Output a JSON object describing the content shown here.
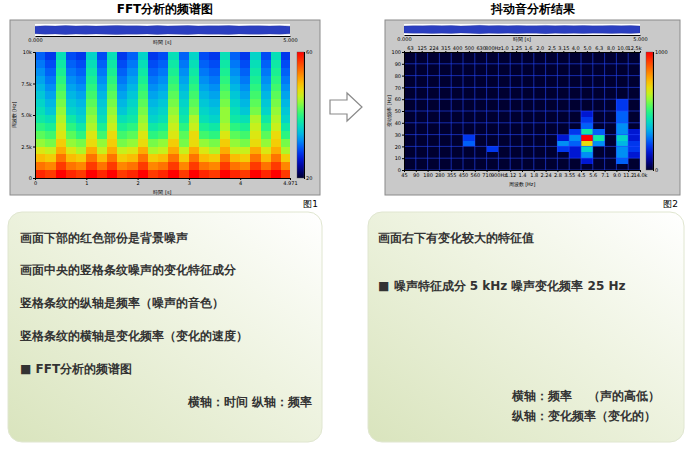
{
  "chart_data": [
    {
      "type": "heatmap",
      "title": "FFT分析的频谱图",
      "figure_label": "图1",
      "x_label": "時間 [s]",
      "y_label": "周波数 [Hz]",
      "xlim": [
        0,
        4.971
      ],
      "xticks": [
        0,
        1,
        2,
        3,
        4,
        4.971
      ],
      "ylim": [
        0,
        10000
      ],
      "yticks": [
        0,
        {
          "value": 2500,
          "label": "2.5k"
        },
        {
          "value": 5000,
          "label": "5.0k"
        },
        {
          "value": 7500,
          "label": "7.5k"
        },
        {
          "value": 10000,
          "label": "10k"
        }
      ],
      "x_edges": [
        0,
        0.2,
        0.4,
        0.6,
        0.8,
        1.0,
        1.2,
        1.4,
        1.6,
        1.8,
        2.0,
        2.2,
        2.4,
        2.6,
        2.8,
        3.0,
        3.2,
        3.4,
        3.6,
        3.8,
        4.0,
        4.2,
        4.4,
        4.6,
        4.8,
        5.0
      ],
      "y_edges": [
        0,
        625,
        1250,
        1875,
        2500,
        3125,
        3750,
        4375,
        5000,
        5625,
        6250,
        6875,
        7500,
        8125,
        8750,
        9375,
        10000
      ],
      "z": [
        [
          58,
          57,
          60,
          58,
          57,
          60,
          58,
          60,
          57,
          58,
          60,
          57,
          58,
          60,
          57,
          60,
          58,
          57,
          60,
          58,
          57,
          60,
          58,
          60,
          57
        ],
        [
          54,
          53,
          57,
          54,
          53,
          57,
          54,
          57,
          53,
          54,
          57,
          53,
          54,
          57,
          53,
          57,
          54,
          53,
          57,
          54,
          53,
          57,
          54,
          57,
          53
        ],
        [
          50,
          49,
          54,
          50,
          49,
          54,
          50,
          54,
          49,
          50,
          54,
          49,
          50,
          54,
          49,
          54,
          50,
          49,
          54,
          50,
          49,
          54,
          50,
          54,
          49
        ],
        [
          47,
          46,
          51,
          47,
          45,
          51,
          46,
          51,
          46,
          47,
          51,
          45,
          46,
          51,
          46,
          51,
          47,
          45,
          51,
          46,
          46,
          51,
          47,
          51,
          45
        ],
        [
          44,
          43,
          49,
          44,
          43,
          48,
          44,
          49,
          43,
          44,
          48,
          43,
          44,
          49,
          43,
          48,
          44,
          43,
          49,
          44,
          43,
          48,
          44,
          49,
          43
        ],
        [
          42,
          41,
          47,
          42,
          40,
          47,
          41,
          48,
          41,
          42,
          47,
          40,
          41,
          47,
          42,
          48,
          41,
          40,
          47,
          42,
          41,
          47,
          42,
          48,
          40
        ],
        [
          40,
          39,
          46,
          40,
          38,
          45,
          39,
          46,
          39,
          40,
          45,
          38,
          39,
          46,
          40,
          46,
          39,
          38,
          45,
          40,
          39,
          46,
          40,
          46,
          38
        ],
        [
          38,
          37,
          45,
          38,
          36,
          44,
          37,
          45,
          37,
          38,
          44,
          36,
          37,
          45,
          38,
          45,
          37,
          36,
          44,
          38,
          37,
          45,
          38,
          45,
          36
        ],
        [
          37,
          35,
          44,
          36,
          35,
          43,
          36,
          44,
          35,
          37,
          43,
          35,
          36,
          44,
          37,
          43,
          36,
          35,
          44,
          37,
          35,
          43,
          36,
          44,
          35
        ],
        [
          36,
          34,
          43,
          35,
          34,
          42,
          35,
          43,
          34,
          36,
          42,
          34,
          35,
          43,
          36,
          42,
          35,
          34,
          43,
          36,
          34,
          42,
          35,
          43,
          34
        ],
        [
          35,
          33,
          42,
          34,
          33,
          41,
          34,
          42,
          33,
          35,
          41,
          33,
          34,
          42,
          35,
          41,
          34,
          33,
          42,
          35,
          33,
          41,
          34,
          42,
          33
        ],
        [
          34,
          32,
          41,
          33,
          32,
          40,
          33,
          41,
          32,
          34,
          40,
          32,
          33,
          41,
          34,
          40,
          33,
          32,
          41,
          34,
          32,
          40,
          33,
          41,
          32
        ],
        [
          33,
          31,
          40,
          32,
          31,
          39,
          32,
          40,
          31,
          33,
          39,
          31,
          32,
          40,
          33,
          39,
          32,
          31,
          40,
          33,
          31,
          39,
          32,
          40,
          31
        ],
        [
          32,
          30,
          39,
          31,
          30,
          38,
          31,
          39,
          30,
          32,
          38,
          30,
          31,
          39,
          32,
          38,
          31,
          30,
          39,
          32,
          30,
          38,
          31,
          39,
          30
        ],
        [
          31,
          29,
          38,
          30,
          29,
          37,
          30,
          38,
          29,
          31,
          37,
          29,
          30,
          38,
          31,
          37,
          30,
          29,
          38,
          31,
          29,
          37,
          30,
          38,
          29
        ],
        [
          30,
          28,
          37,
          29,
          28,
          36,
          29,
          37,
          28,
          30,
          36,
          28,
          29,
          37,
          30,
          36,
          29,
          28,
          37,
          30,
          28,
          36,
          29,
          37,
          28
        ]
      ],
      "colorbar": {
        "range": [
          20,
          60
        ],
        "ticks": [
          20,
          60
        ]
      },
      "waveform": {
        "x_label": "時間 [s]",
        "xlim": [
          0,
          5
        ],
        "xticks": [
          {
            "value": 0,
            "label": "0.000"
          },
          {
            "value": 5,
            "label": "5.000"
          }
        ],
        "ylim": [
          -1,
          1
        ],
        "x": [
          0,
          0.2,
          0.4,
          0.6,
          0.8,
          1.0,
          1.2,
          1.4,
          1.6,
          1.8,
          2.0,
          2.2,
          2.4,
          2.6,
          2.8,
          3.0,
          3.2,
          3.4,
          3.6,
          3.8,
          4.0,
          4.2,
          4.4,
          4.6,
          4.8,
          5.0
        ],
        "values": [
          0.62,
          0.7,
          0.66,
          0.74,
          0.68,
          0.72,
          0.65,
          0.7,
          0.76,
          0.69,
          0.71,
          0.66,
          0.73,
          0.68,
          0.7,
          0.75,
          0.67,
          0.71,
          0.69,
          0.73,
          0.66,
          0.7,
          0.72,
          0.68,
          0.71,
          0.64
        ]
      }
    },
    {
      "type": "heatmap",
      "title": "抖动音分析结果",
      "figure_label": "图2",
      "x_label": "周波数 [Hz]",
      "y_label": "变动频率 [Hz]",
      "categories": [
        "63",
        "125",
        "224",
        "315",
        "400",
        "500",
        "630",
        "800Hz",
        "1.0",
        "1.25",
        "1.6",
        "2.0",
        "2.5",
        "3.15",
        "4.0",
        "5.0",
        "6.3",
        "8.0",
        "10.0",
        "12.5k"
      ],
      "band_edges": [
        "45",
        "90",
        "180",
        "280",
        "355",
        "450",
        "560",
        "710",
        "900Hz",
        "1.12",
        "1.4",
        "1.8",
        "2.24",
        "2.8",
        "3.55",
        "4.5",
        "5.6",
        "7.1",
        "9.0",
        "11.2",
        "14.0k"
      ],
      "ylim": [
        0,
        100
      ],
      "yticks": [
        0,
        10,
        20,
        30,
        40,
        50,
        60,
        70,
        80,
        90,
        100
      ],
      "y_edges": [
        0,
        5,
        10,
        15,
        20,
        25,
        30,
        35,
        40,
        45,
        50,
        55,
        60,
        65,
        70,
        75,
        80,
        85,
        90,
        95,
        100
      ],
      "grid": true,
      "z": [
        [
          0,
          0,
          0,
          0,
          0,
          0,
          0,
          0,
          0,
          0,
          0,
          0,
          0,
          0,
          0,
          0,
          0,
          0,
          0,
          0
        ],
        [
          0,
          0,
          0,
          0,
          0,
          0,
          0,
          0,
          0,
          0,
          0,
          0,
          0,
          0,
          0,
          150,
          0,
          0,
          250,
          0
        ],
        [
          0,
          0,
          0,
          0,
          0,
          0,
          0,
          0,
          0,
          0,
          0,
          0,
          0,
          0,
          150,
          300,
          0,
          0,
          300,
          150
        ],
        [
          0,
          0,
          0,
          0,
          0,
          0,
          0,
          200,
          0,
          0,
          0,
          0,
          0,
          200,
          150,
          400,
          0,
          0,
          300,
          200
        ],
        [
          0,
          0,
          0,
          0,
          0,
          250,
          0,
          0,
          0,
          0,
          0,
          0,
          0,
          300,
          250,
          700,
          300,
          0,
          350,
          200
        ],
        [
          0,
          0,
          0,
          0,
          0,
          200,
          0,
          0,
          0,
          0,
          0,
          0,
          0,
          150,
          300,
          1000,
          450,
          0,
          400,
          150
        ],
        [
          0,
          0,
          0,
          0,
          0,
          0,
          0,
          0,
          0,
          0,
          0,
          0,
          0,
          0,
          200,
          450,
          250,
          0,
          300,
          150
        ],
        [
          0,
          0,
          0,
          0,
          0,
          0,
          0,
          0,
          0,
          0,
          0,
          0,
          0,
          0,
          0,
          250,
          0,
          0,
          300,
          0
        ],
        [
          0,
          0,
          0,
          0,
          0,
          0,
          0,
          0,
          0,
          0,
          0,
          0,
          0,
          0,
          0,
          200,
          0,
          0,
          250,
          0
        ],
        [
          0,
          0,
          0,
          0,
          0,
          0,
          0,
          0,
          0,
          0,
          0,
          0,
          0,
          0,
          0,
          150,
          0,
          0,
          250,
          0
        ],
        [
          0,
          0,
          0,
          0,
          0,
          0,
          0,
          0,
          0,
          0,
          0,
          0,
          0,
          0,
          0,
          0,
          0,
          0,
          200,
          0
        ],
        [
          0,
          0,
          0,
          0,
          0,
          0,
          0,
          0,
          0,
          0,
          0,
          0,
          0,
          0,
          0,
          0,
          0,
          0,
          200,
          0
        ],
        [
          0,
          0,
          0,
          0,
          0,
          0,
          0,
          0,
          0,
          0,
          0,
          0,
          0,
          0,
          0,
          0,
          0,
          0,
          0,
          0
        ],
        [
          0,
          0,
          0,
          0,
          0,
          0,
          0,
          0,
          0,
          0,
          0,
          0,
          0,
          0,
          0,
          0,
          0,
          0,
          0,
          0
        ],
        [
          0,
          0,
          0,
          0,
          0,
          0,
          0,
          0,
          0,
          0,
          0,
          0,
          0,
          0,
          0,
          0,
          0,
          0,
          0,
          0
        ],
        [
          0,
          0,
          0,
          0,
          0,
          0,
          0,
          0,
          0,
          0,
          0,
          0,
          0,
          0,
          0,
          0,
          0,
          0,
          0,
          0
        ],
        [
          0,
          0,
          0,
          0,
          0,
          0,
          0,
          0,
          0,
          0,
          0,
          0,
          0,
          0,
          0,
          0,
          0,
          0,
          0,
          0
        ],
        [
          0,
          0,
          0,
          0,
          0,
          0,
          0,
          0,
          0,
          0,
          0,
          0,
          0,
          0,
          0,
          0,
          0,
          0,
          0,
          0
        ],
        [
          0,
          0,
          0,
          0,
          0,
          0,
          0,
          0,
          0,
          0,
          0,
          0,
          0,
          0,
          0,
          0,
          0,
          0,
          0,
          0
        ],
        [
          0,
          0,
          0,
          0,
          0,
          0,
          0,
          0,
          0,
          0,
          0,
          0,
          0,
          0,
          0,
          0,
          0,
          0,
          0,
          0
        ]
      ],
      "colorbar": {
        "range": [
          0,
          1000
        ],
        "ticks": [
          0,
          1000
        ]
      },
      "waveform": {
        "x_label": "時間 [s]",
        "xlim": [
          0,
          5
        ],
        "xticks": [
          {
            "value": 0,
            "label": "0.000"
          },
          {
            "value": 5,
            "label": "5.000"
          }
        ],
        "ylim": [
          -1,
          1
        ],
        "x": [
          0,
          0.2,
          0.4,
          0.6,
          0.8,
          1.0,
          1.2,
          1.4,
          1.6,
          1.8,
          2.0,
          2.2,
          2.4,
          2.6,
          2.8,
          3.0,
          3.2,
          3.4,
          3.6,
          3.8,
          4.0,
          4.2,
          4.4,
          4.6,
          4.8,
          5.0
        ],
        "values": [
          0.62,
          0.7,
          0.66,
          0.74,
          0.68,
          0.72,
          0.65,
          0.7,
          0.76,
          0.69,
          0.71,
          0.66,
          0.73,
          0.68,
          0.7,
          0.75,
          0.67,
          0.71,
          0.69,
          0.73,
          0.66,
          0.7,
          0.72,
          0.68,
          0.71,
          0.64
        ]
      }
    }
  ],
  "panels": [
    {
      "lines": [
        "画面下部的红色部份是背景噪声",
        "画面中央的竖格条纹噪声的变化特征成分",
        "竖格条纹的纵轴是频率（噪声的音色）",
        "竖格条纹的横轴是变化频率（变化的速度）",
        "■ FFT分析的频谱图"
      ],
      "notes": [
        "横轴：时间 纵轴：频率"
      ]
    },
    {
      "lines": [
        "画面右下有变化较大的特征值",
        "■ 噪声特征成分 5 kHz 噪声变化频率 25 Hz"
      ],
      "notes": [
        "横轴：频率　 （声的高低）",
        "纵轴：变化频率（变化的）"
      ]
    }
  ]
}
